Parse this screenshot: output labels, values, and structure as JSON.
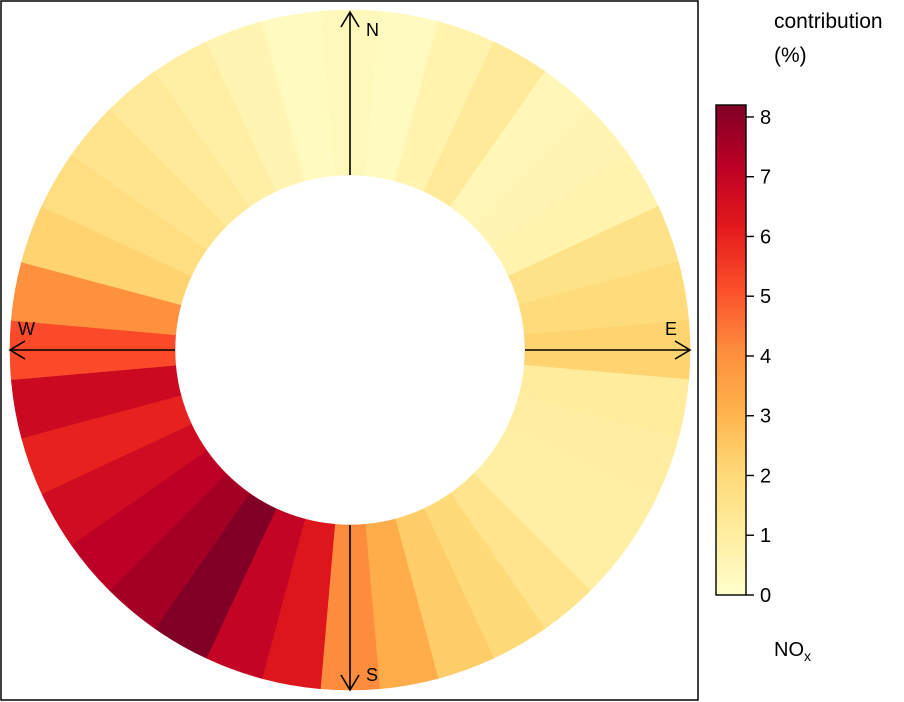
{
  "chart_data": {
    "type": "polar-annulus",
    "variable": "NO",
    "variable_subscript": "x",
    "legend_title_line1": "contribution",
    "legend_title_line2": "(%)",
    "directions": {
      "north": "N",
      "east": "E",
      "south": "S",
      "west": "W"
    },
    "colorbar": {
      "min": 0,
      "max": 8.2,
      "ticks": [
        "0",
        "1",
        "2",
        "3",
        "4",
        "5",
        "6",
        "7",
        "8"
      ]
    },
    "color_scale": [
      "#ffffcc",
      "#ffeda0",
      "#fed976",
      "#feb24c",
      "#fd8d3c",
      "#fc4e2a",
      "#e31a1c",
      "#bd0026",
      "#800026"
    ],
    "sector_width_deg": 10,
    "sectors": [
      {
        "dir": 0,
        "contribution": 0.4
      },
      {
        "dir": 10,
        "contribution": 0.3
      },
      {
        "dir": 20,
        "contribution": 0.7
      },
      {
        "dir": 30,
        "contribution": 1.2
      },
      {
        "dir": 40,
        "contribution": 0.5
      },
      {
        "dir": 50,
        "contribution": 0.6
      },
      {
        "dir": 60,
        "contribution": 0.7
      },
      {
        "dir": 70,
        "contribution": 1.6
      },
      {
        "dir": 80,
        "contribution": 1.9
      },
      {
        "dir": 90,
        "contribution": 2.2
      },
      {
        "dir": 100,
        "contribution": 1.1
      },
      {
        "dir": 110,
        "contribution": 1.0
      },
      {
        "dir": 120,
        "contribution": 0.9
      },
      {
        "dir": 130,
        "contribution": 0.9
      },
      {
        "dir": 140,
        "contribution": 1.5
      },
      {
        "dir": 150,
        "contribution": 2.0
      },
      {
        "dir": 160,
        "contribution": 2.4
      },
      {
        "dir": 170,
        "contribution": 3.2
      },
      {
        "dir": 180,
        "contribution": 4.1
      },
      {
        "dir": 190,
        "contribution": 6.3
      },
      {
        "dir": 200,
        "contribution": 7.0
      },
      {
        "dir": 210,
        "contribution": 8.2
      },
      {
        "dir": 220,
        "contribution": 7.6
      },
      {
        "dir": 230,
        "contribution": 7.2
      },
      {
        "dir": 240,
        "contribution": 6.7
      },
      {
        "dir": 250,
        "contribution": 6.0
      },
      {
        "dir": 260,
        "contribution": 6.8
      },
      {
        "dir": 270,
        "contribution": 5.2
      },
      {
        "dir": 280,
        "contribution": 4.0
      },
      {
        "dir": 290,
        "contribution": 2.2
      },
      {
        "dir": 300,
        "contribution": 1.8
      },
      {
        "dir": 310,
        "contribution": 1.5
      },
      {
        "dir": 320,
        "contribution": 1.2
      },
      {
        "dir": 330,
        "contribution": 0.9
      },
      {
        "dir": 340,
        "contribution": 0.6
      },
      {
        "dir": 350,
        "contribution": 0.3
      }
    ]
  }
}
